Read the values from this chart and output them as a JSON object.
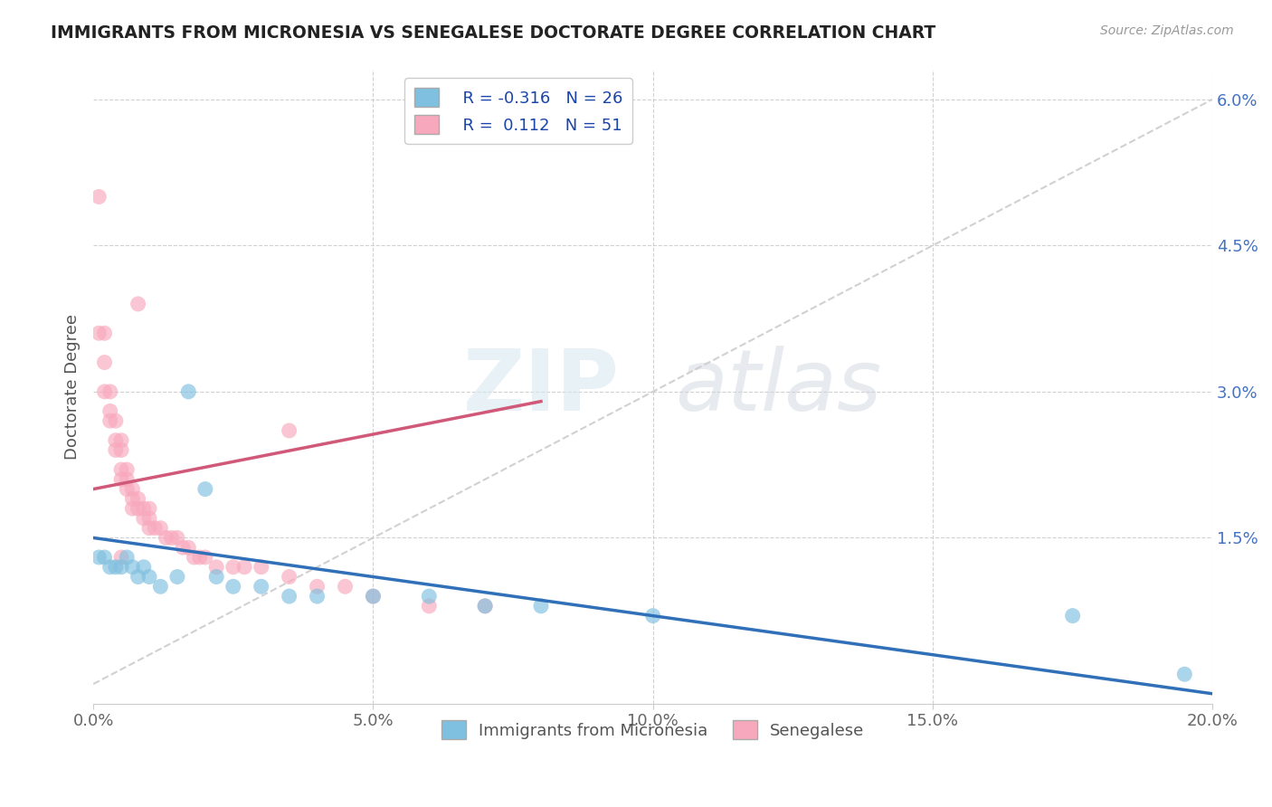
{
  "title": "IMMIGRANTS FROM MICRONESIA VS SENEGALESE DOCTORATE DEGREE CORRELATION CHART",
  "source": "Source: ZipAtlas.com",
  "xlabel_ticks": [
    0.0,
    0.05,
    0.1,
    0.15,
    0.2
  ],
  "xlabel_labels": [
    "0.0%",
    "5.0%",
    "10.0%",
    "15.0%",
    "20.0%"
  ],
  "ylabel": "Doctorate Degree",
  "ylabel_right_ticks": [
    0.0,
    0.015,
    0.03,
    0.045,
    0.06
  ],
  "ylabel_right_labels": [
    "",
    "1.5%",
    "3.0%",
    "4.5%",
    "6.0%"
  ],
  "xlim": [
    0.0,
    0.2
  ],
  "ylim": [
    -0.002,
    0.063
  ],
  "legend_label1": "Immigrants from Micronesia",
  "legend_label2": "Senegalese",
  "R1": -0.316,
  "N1": 26,
  "R2": 0.112,
  "N2": 51,
  "color_blue": "#7fbfdf",
  "color_pink": "#f8a8bc",
  "color_blue_line": "#3070b8",
  "color_pink_line": "#d05878",
  "color_diag_line": "#cccccc",
  "blue_scatter_x": [
    0.001,
    0.002,
    0.003,
    0.004,
    0.005,
    0.006,
    0.007,
    0.008,
    0.009,
    0.01,
    0.012,
    0.015,
    0.017,
    0.02,
    0.022,
    0.025,
    0.03,
    0.035,
    0.04,
    0.05,
    0.06,
    0.07,
    0.08,
    0.1,
    0.175,
    0.195
  ],
  "blue_scatter_y": [
    0.013,
    0.013,
    0.012,
    0.012,
    0.012,
    0.013,
    0.012,
    0.011,
    0.012,
    0.011,
    0.01,
    0.011,
    0.03,
    0.02,
    0.011,
    0.01,
    0.01,
    0.009,
    0.009,
    0.009,
    0.009,
    0.008,
    0.008,
    0.007,
    0.007,
    0.001
  ],
  "pink_scatter_x": [
    0.001,
    0.001,
    0.002,
    0.002,
    0.002,
    0.003,
    0.003,
    0.003,
    0.004,
    0.004,
    0.004,
    0.005,
    0.005,
    0.005,
    0.005,
    0.006,
    0.006,
    0.006,
    0.007,
    0.007,
    0.007,
    0.008,
    0.008,
    0.009,
    0.009,
    0.01,
    0.01,
    0.01,
    0.011,
    0.012,
    0.013,
    0.014,
    0.015,
    0.016,
    0.017,
    0.018,
    0.019,
    0.02,
    0.022,
    0.025,
    0.027,
    0.03,
    0.035,
    0.04,
    0.045,
    0.05,
    0.06,
    0.07,
    0.008,
    0.005,
    0.035
  ],
  "pink_scatter_y": [
    0.05,
    0.036,
    0.036,
    0.033,
    0.03,
    0.03,
    0.028,
    0.027,
    0.027,
    0.025,
    0.024,
    0.025,
    0.024,
    0.022,
    0.021,
    0.022,
    0.021,
    0.02,
    0.02,
    0.019,
    0.018,
    0.019,
    0.018,
    0.018,
    0.017,
    0.018,
    0.017,
    0.016,
    0.016,
    0.016,
    0.015,
    0.015,
    0.015,
    0.014,
    0.014,
    0.013,
    0.013,
    0.013,
    0.012,
    0.012,
    0.012,
    0.012,
    0.011,
    0.01,
    0.01,
    0.009,
    0.008,
    0.008,
    0.039,
    0.013,
    0.026
  ],
  "watermark_zip": "ZIP",
  "watermark_atlas": "atlas",
  "background_color": "#ffffff",
  "grid_color": "#cccccc",
  "blue_line_x0": 0.0,
  "blue_line_y0": 0.015,
  "blue_line_x1": 0.2,
  "blue_line_y1": -0.001,
  "pink_line_x0": 0.0,
  "pink_line_y0": 0.02,
  "pink_line_x1": 0.08,
  "pink_line_y1": 0.029
}
